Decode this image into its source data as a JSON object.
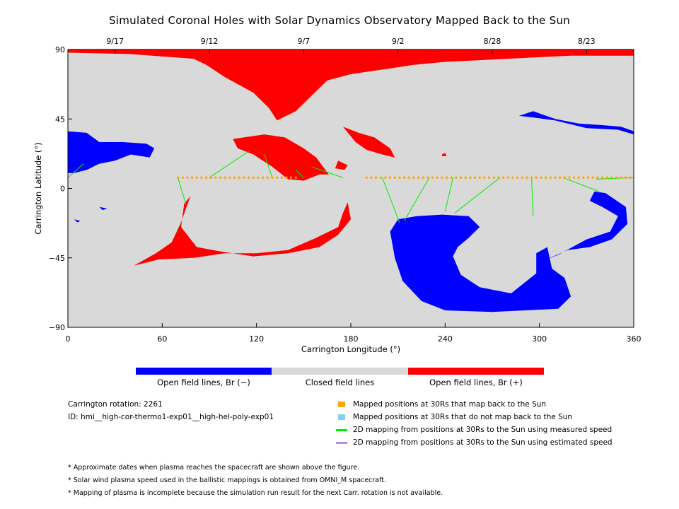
{
  "title": "Simulated Coronal Holes with Solar Dynamics Observatory Mapped Back to the Sun",
  "colors": {
    "closed": "#d9d9d9",
    "open_negative": "#0000ff",
    "open_positive": "#ff0000",
    "mapped_yes": "#ffa500",
    "mapped_no": "#87cefa",
    "measured": "#00ee00",
    "estimated": "#bb88ee"
  },
  "chart_data": {
    "type": "map",
    "xlabel": "Carrington Longitude (°)",
    "ylabel": "Carrington Latitude (°)",
    "xlim": [
      0,
      360
    ],
    "ylim": [
      -90,
      90
    ],
    "x_ticks": [
      "0",
      "60",
      "120",
      "180",
      "240",
      "300",
      "360"
    ],
    "y_ticks": [
      "90",
      "45",
      "0",
      "−45",
      "−90"
    ],
    "top_axis_dates": [
      {
        "label": "9/17",
        "lon": 30
      },
      {
        "label": "9/12",
        "lon": 90
      },
      {
        "label": "9/7",
        "lon": 150
      },
      {
        "label": "9/2",
        "lon": 210
      },
      {
        "label": "8/28",
        "lon": 270
      },
      {
        "label": "8/23",
        "lon": 330
      }
    ],
    "mapped_latitude_30Rs": 7,
    "mapped_segments": [
      [
        70,
        145
      ],
      [
        190,
        360
      ]
    ],
    "field_line_mappings": [
      {
        "from_lon": 70,
        "to_lon": 75,
        "to_lat": -10
      },
      {
        "from_lon": 90,
        "to_lon": 115,
        "to_lat": 24
      },
      {
        "from_lon": 130,
        "to_lon": 125,
        "to_lat": 22
      },
      {
        "from_lon": 150,
        "to_lon": 145,
        "to_lat": 12
      },
      {
        "from_lon": 175,
        "to_lon": 155,
        "to_lat": 14
      },
      {
        "from_lon": 200,
        "to_lon": 211,
        "to_lat": -22
      },
      {
        "from_lon": 230,
        "to_lon": 214,
        "to_lat": -21
      },
      {
        "from_lon": 245,
        "to_lon": 240,
        "to_lat": -15
      },
      {
        "from_lon": 275,
        "to_lon": 246,
        "to_lat": -16
      },
      {
        "from_lon": 295,
        "to_lon": 296,
        "to_lat": -18
      },
      {
        "from_lon": 315,
        "to_lon": 338,
        "to_lat": -2
      },
      {
        "from_lon": 360,
        "to_lon": 336,
        "to_lat": 6
      },
      {
        "from_lon": 0,
        "to_lon": 10,
        "to_lat": 16
      }
    ],
    "colorbar": [
      {
        "label": "Open field lines, Br (−)",
        "color": "#0000ff"
      },
      {
        "label": "Closed field lines",
        "color": "#d9d9d9"
      },
      {
        "label": "Open field lines, Br (+)",
        "color": "#ff0000"
      }
    ]
  },
  "info": {
    "rotation": "Carrington rotation: 2261",
    "id": "ID: hmi__high-cor-thermo1-exp01__high-hel-poly-exp01"
  },
  "key": [
    {
      "label": "Mapped positions at 30Rs that map back to the Sun",
      "type": "square",
      "color": "#ffa500"
    },
    {
      "label": "Mapped positions at 30Rs that do not map back to the Sun",
      "type": "square",
      "color": "#87cefa"
    },
    {
      "label": "2D mapping from positions at 30Rs to the Sun using measured speed",
      "type": "line",
      "color": "#00ee00"
    },
    {
      "label": "2D mapping from positions at 30Rs to the Sun using estimated speed",
      "type": "line",
      "color": "#bb88ee"
    }
  ],
  "notes": [
    "* Approximate dates when plasma reaches the spacecraft are shown above the figure.",
    "* Solar wind plasma speed used in the ballistic mappings is obtained from OMNI_M spacecraft.",
    "* Mapping of plasma is incomplete because the simulation run result for the next Carr. rotation is not available."
  ]
}
